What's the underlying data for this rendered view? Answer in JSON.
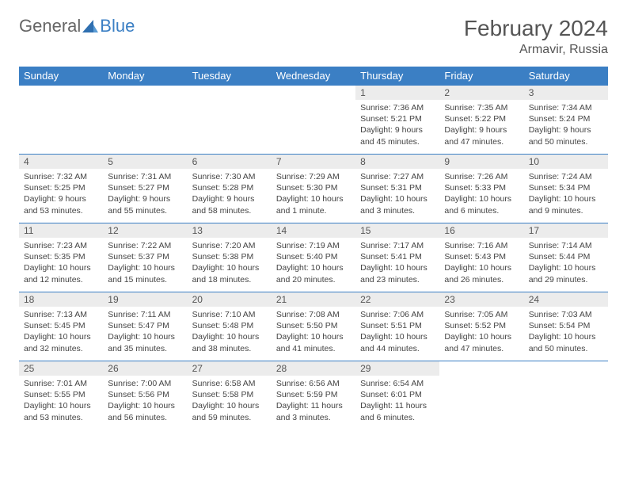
{
  "brand": {
    "part1": "General",
    "part2": "Blue"
  },
  "title": "February 2024",
  "location": "Armavir, Russia",
  "colors": {
    "header_bg": "#3b7fc4",
    "daynum_bg": "#ececec",
    "border": "#3b7fc4",
    "text": "#444"
  },
  "weekdays": [
    "Sunday",
    "Monday",
    "Tuesday",
    "Wednesday",
    "Thursday",
    "Friday",
    "Saturday"
  ],
  "weeks": [
    [
      null,
      null,
      null,
      null,
      {
        "n": "1",
        "sr": "7:36 AM",
        "ss": "5:21 PM",
        "dl": "9 hours and 45 minutes."
      },
      {
        "n": "2",
        "sr": "7:35 AM",
        "ss": "5:22 PM",
        "dl": "9 hours and 47 minutes."
      },
      {
        "n": "3",
        "sr": "7:34 AM",
        "ss": "5:24 PM",
        "dl": "9 hours and 50 minutes."
      }
    ],
    [
      {
        "n": "4",
        "sr": "7:32 AM",
        "ss": "5:25 PM",
        "dl": "9 hours and 53 minutes."
      },
      {
        "n": "5",
        "sr": "7:31 AM",
        "ss": "5:27 PM",
        "dl": "9 hours and 55 minutes."
      },
      {
        "n": "6",
        "sr": "7:30 AM",
        "ss": "5:28 PM",
        "dl": "9 hours and 58 minutes."
      },
      {
        "n": "7",
        "sr": "7:29 AM",
        "ss": "5:30 PM",
        "dl": "10 hours and 1 minute."
      },
      {
        "n": "8",
        "sr": "7:27 AM",
        "ss": "5:31 PM",
        "dl": "10 hours and 3 minutes."
      },
      {
        "n": "9",
        "sr": "7:26 AM",
        "ss": "5:33 PM",
        "dl": "10 hours and 6 minutes."
      },
      {
        "n": "10",
        "sr": "7:24 AM",
        "ss": "5:34 PM",
        "dl": "10 hours and 9 minutes."
      }
    ],
    [
      {
        "n": "11",
        "sr": "7:23 AM",
        "ss": "5:35 PM",
        "dl": "10 hours and 12 minutes."
      },
      {
        "n": "12",
        "sr": "7:22 AM",
        "ss": "5:37 PM",
        "dl": "10 hours and 15 minutes."
      },
      {
        "n": "13",
        "sr": "7:20 AM",
        "ss": "5:38 PM",
        "dl": "10 hours and 18 minutes."
      },
      {
        "n": "14",
        "sr": "7:19 AM",
        "ss": "5:40 PM",
        "dl": "10 hours and 20 minutes."
      },
      {
        "n": "15",
        "sr": "7:17 AM",
        "ss": "5:41 PM",
        "dl": "10 hours and 23 minutes."
      },
      {
        "n": "16",
        "sr": "7:16 AM",
        "ss": "5:43 PM",
        "dl": "10 hours and 26 minutes."
      },
      {
        "n": "17",
        "sr": "7:14 AM",
        "ss": "5:44 PM",
        "dl": "10 hours and 29 minutes."
      }
    ],
    [
      {
        "n": "18",
        "sr": "7:13 AM",
        "ss": "5:45 PM",
        "dl": "10 hours and 32 minutes."
      },
      {
        "n": "19",
        "sr": "7:11 AM",
        "ss": "5:47 PM",
        "dl": "10 hours and 35 minutes."
      },
      {
        "n": "20",
        "sr": "7:10 AM",
        "ss": "5:48 PM",
        "dl": "10 hours and 38 minutes."
      },
      {
        "n": "21",
        "sr": "7:08 AM",
        "ss": "5:50 PM",
        "dl": "10 hours and 41 minutes."
      },
      {
        "n": "22",
        "sr": "7:06 AM",
        "ss": "5:51 PM",
        "dl": "10 hours and 44 minutes."
      },
      {
        "n": "23",
        "sr": "7:05 AM",
        "ss": "5:52 PM",
        "dl": "10 hours and 47 minutes."
      },
      {
        "n": "24",
        "sr": "7:03 AM",
        "ss": "5:54 PM",
        "dl": "10 hours and 50 minutes."
      }
    ],
    [
      {
        "n": "25",
        "sr": "7:01 AM",
        "ss": "5:55 PM",
        "dl": "10 hours and 53 minutes."
      },
      {
        "n": "26",
        "sr": "7:00 AM",
        "ss": "5:56 PM",
        "dl": "10 hours and 56 minutes."
      },
      {
        "n": "27",
        "sr": "6:58 AM",
        "ss": "5:58 PM",
        "dl": "10 hours and 59 minutes."
      },
      {
        "n": "28",
        "sr": "6:56 AM",
        "ss": "5:59 PM",
        "dl": "11 hours and 3 minutes."
      },
      {
        "n": "29",
        "sr": "6:54 AM",
        "ss": "6:01 PM",
        "dl": "11 hours and 6 minutes."
      },
      null,
      null
    ]
  ],
  "labels": {
    "sunrise": "Sunrise:",
    "sunset": "Sunset:",
    "daylight": "Daylight:"
  }
}
